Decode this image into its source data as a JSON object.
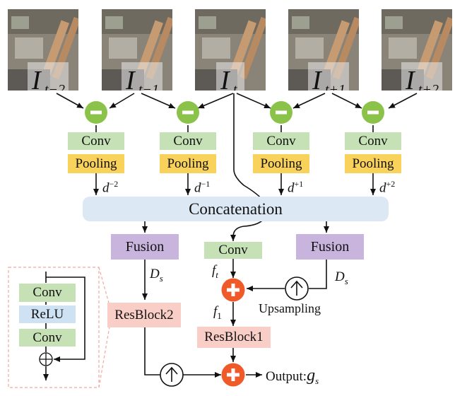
{
  "frames": [
    {
      "base": "I",
      "sub": "t−2"
    },
    {
      "base": "I",
      "sub": "t−1"
    },
    {
      "base": "I",
      "sub": "t"
    },
    {
      "base": "I",
      "sub": "t+1"
    },
    {
      "base": "I",
      "sub": "t+2"
    }
  ],
  "conv_label": "Conv",
  "pooling_label": "Pooling",
  "diff_labels": [
    {
      "base": "d",
      "sup": "−2"
    },
    {
      "base": "d",
      "sup": "−1"
    },
    {
      "base": "d",
      "sup": "+1"
    },
    {
      "base": "d",
      "sup": "+2"
    }
  ],
  "concatenation_label": "Concatenation",
  "fusion_label": "Fusion",
  "ds_label": {
    "base": "D",
    "sub": "s"
  },
  "ft_label": {
    "base": "f",
    "sub": "t"
  },
  "f1_label": {
    "base": "f",
    "sub": "1"
  },
  "upsampling_label": "Upsampling",
  "resblock1_label": "ResBlock1",
  "resblock2_label": "ResBlock2",
  "relu_label": "ReLU",
  "output_label": "Output:",
  "gs_label": {
    "base": "g",
    "sub": "s"
  },
  "colors": {
    "subtract": "#8bc34a",
    "add": "#f05a28",
    "conv": "#c5e1b5",
    "pooling": "#f9d25b",
    "fusion": "#c9b4de",
    "resblock": "#f9cec6",
    "concat": "#dce9f5",
    "relu": "#cfe2f3",
    "inset_border": "#f4a6a0"
  }
}
